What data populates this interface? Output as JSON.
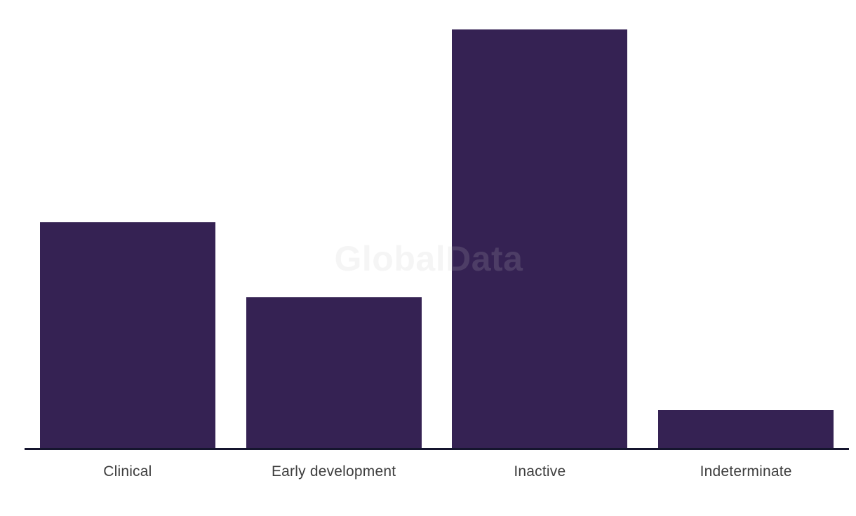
{
  "chart_data": {
    "type": "bar",
    "categories": [
      "Clinical",
      "Early development",
      "Inactive",
      "Indeterminate"
    ],
    "values": [
      54,
      36,
      100,
      9
    ],
    "value_scale": "relative, tallest bar = 100 (no value axis shown)",
    "title": "",
    "xlabel": "",
    "ylabel": "",
    "ylim": [
      0,
      107
    ],
    "grid": false,
    "legend": false,
    "bar_color": "#352253",
    "axis_line_color": "#15152e",
    "label_color": "#3d3d3d",
    "background_color": "#ffffff"
  },
  "watermark": {
    "text": "GlobalData",
    "color": "rgba(196,196,196,0.17)"
  }
}
